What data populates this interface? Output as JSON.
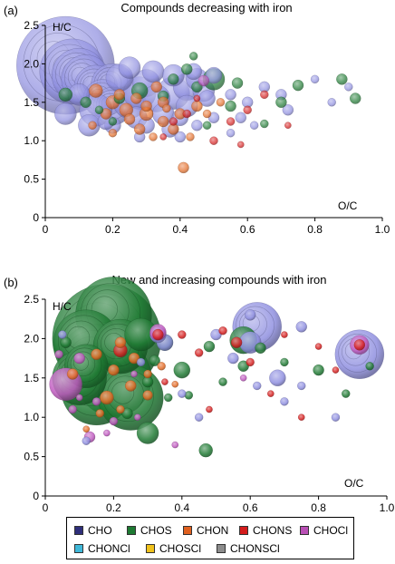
{
  "chart_data": [
    {
      "panel_label": "(a)",
      "type": "scatter",
      "title": "Compounds decreasing with iron",
      "ylabel": "H/C",
      "xlabel": "O/C",
      "xlim": [
        0,
        1.0
      ],
      "ylim": [
        0,
        2.5
      ],
      "x_ticks": [
        "0",
        "0.2",
        "0.4",
        "0.6",
        "0.8",
        "1.0"
      ],
      "y_ticks": [
        "0",
        "0.5",
        "1.0",
        "1.5",
        "2.0",
        "2.5"
      ],
      "grid": false,
      "bubble_series": [
        {
          "class": "CHO",
          "points": [
            [
              0.06,
              1.98,
              18
            ],
            [
              0.08,
              1.9,
              12
            ],
            [
              0.1,
              1.85,
              10
            ],
            [
              0.12,
              1.8,
              9
            ],
            [
              0.15,
              1.7,
              8
            ],
            [
              0.2,
              1.72,
              8
            ],
            [
              0.17,
              1.55,
              7
            ],
            [
              0.2,
              1.45,
              7
            ],
            [
              0.15,
              1.4,
              6
            ],
            [
              0.25,
              1.5,
              6
            ],
            [
              0.28,
              1.62,
              6
            ],
            [
              0.22,
              1.82,
              5
            ],
            [
              0.3,
              1.75,
              5
            ],
            [
              0.33,
              1.55,
              5
            ],
            [
              0.38,
              1.62,
              6
            ],
            [
              0.42,
              1.7,
              5
            ],
            [
              0.45,
              1.8,
              4
            ],
            [
              0.42,
              1.45,
              4
            ],
            [
              0.35,
              1.35,
              4
            ],
            [
              0.27,
              1.3,
              4
            ],
            [
              0.4,
              1.3,
              3
            ],
            [
              0.48,
              1.55,
              3
            ],
            [
              0.5,
              1.85,
              3
            ],
            [
              0.13,
              1.2,
              4
            ],
            [
              0.2,
              1.2,
              3
            ],
            [
              0.3,
              1.2,
              3
            ],
            [
              0.37,
              1.15,
              3
            ],
            [
              0.45,
              1.2,
              2
            ],
            [
              0.55,
              1.6,
              2
            ],
            [
              0.6,
              1.5,
              2
            ],
            [
              0.58,
              1.3,
              2
            ],
            [
              0.65,
              1.7,
              2
            ],
            [
              0.7,
              1.6,
              2
            ],
            [
              0.72,
              1.4,
              2
            ],
            [
              0.8,
              1.8,
              1.5
            ],
            [
              0.85,
              1.5,
              1.5
            ],
            [
              0.9,
              1.7,
              1.5
            ],
            [
              0.25,
              1.95,
              4
            ],
            [
              0.32,
              1.9,
              4
            ],
            [
              0.38,
              1.85,
              4
            ],
            [
              0.1,
              1.6,
              4
            ],
            [
              0.06,
              1.35,
              4
            ],
            [
              0.18,
              1.25,
              3
            ],
            [
              0.5,
              1.3,
              2
            ],
            [
              0.55,
              1.1,
              1.5
            ],
            [
              0.62,
              1.2,
              1.5
            ],
            [
              0.28,
              1.05,
              2
            ],
            [
              0.4,
              1.05,
              2
            ],
            [
              0.47,
              1.65,
              4
            ],
            [
              0.44,
              1.9,
              3
            ]
          ]
        },
        {
          "class": "CHOS",
          "points": [
            [
              0.5,
              1.8,
              4
            ],
            [
              0.28,
              1.65,
              3
            ],
            [
              0.06,
              1.6,
              2.5
            ],
            [
              0.12,
              1.5,
              2
            ],
            [
              0.35,
              1.58,
              2
            ],
            [
              0.45,
              1.7,
              2
            ],
            [
              0.42,
              1.93,
              2
            ],
            [
              0.38,
              1.8,
              2
            ],
            [
              0.22,
              1.55,
              2
            ],
            [
              0.55,
              1.45,
              2
            ],
            [
              0.7,
              1.5,
              2
            ],
            [
              0.75,
              1.72,
              2
            ],
            [
              0.88,
              1.8,
              2
            ],
            [
              0.92,
              1.55,
              2
            ],
            [
              0.2,
              1.25,
              1.5
            ],
            [
              0.16,
              1.4,
              1.5
            ],
            [
              0.48,
              1.2,
              1.5
            ],
            [
              0.57,
              1.75,
              2
            ],
            [
              0.44,
              2.1,
              1.5
            ],
            [
              0.65,
              1.22,
              1.5
            ]
          ]
        },
        {
          "class": "CHON",
          "points": [
            [
              0.15,
              1.65,
              2.5
            ],
            [
              0.2,
              1.5,
              2.5
            ],
            [
              0.24,
              1.4,
              2.5
            ],
            [
              0.3,
              1.35,
              2.5
            ],
            [
              0.35,
              1.25,
              2
            ],
            [
              0.4,
              1.35,
              2
            ],
            [
              0.45,
              1.45,
              2
            ],
            [
              0.3,
              1.45,
              2
            ],
            [
              0.25,
              1.28,
              2
            ],
            [
              0.38,
              1.15,
              2
            ],
            [
              0.41,
              0.65,
              2
            ],
            [
              0.22,
              1.6,
              2
            ],
            [
              0.33,
              1.7,
              2
            ],
            [
              0.18,
              1.35,
              2
            ],
            [
              0.28,
              1.15,
              2
            ],
            [
              0.43,
              1.05,
              1.5
            ],
            [
              0.35,
              1.5,
              2
            ],
            [
              0.27,
              1.55,
              2
            ],
            [
              0.14,
              1.2,
              1.5
            ],
            [
              0.48,
              1.35,
              1.5
            ],
            [
              0.32,
              1.05,
              1.5
            ],
            [
              0.52,
              1.5,
              1.5
            ],
            [
              0.36,
              1.42,
              1.5
            ],
            [
              0.2,
              1.1,
              1.5
            ]
          ]
        },
        {
          "class": "CHONS",
          "points": [
            [
              0.38,
              1.25,
              1.5
            ],
            [
              0.42,
              1.35,
              1.5
            ],
            [
              0.55,
              1.25,
              1.5
            ],
            [
              0.6,
              1.4,
              1.5
            ],
            [
              0.65,
              1.6,
              1.5
            ],
            [
              0.5,
              1.0,
              1.5
            ],
            [
              0.58,
              0.95,
              1.2
            ],
            [
              0.72,
              1.2,
              1.2
            ],
            [
              0.45,
              1.55,
              1.2
            ],
            [
              0.35,
              1.05,
              1.2
            ]
          ]
        },
        {
          "class": "CHOCl",
          "points": [
            [
              0.47,
              1.78,
              2
            ]
          ]
        }
      ]
    },
    {
      "panel_label": "(b)",
      "type": "scatter",
      "title": "New and increasing compounds with iron",
      "ylabel": "H/C",
      "xlabel": "O/C",
      "xlim": [
        0,
        1.0
      ],
      "ylim": [
        0,
        2.5
      ],
      "x_ticks": [
        "0",
        "0.2",
        "0.4",
        "0.6",
        "0.8",
        "1.0"
      ],
      "y_ticks": [
        "0",
        "0.5",
        "1.0",
        "1.5",
        "2.0",
        "2.5"
      ],
      "grid": false,
      "bubble_series": [
        {
          "class": "CHOS",
          "points": [
            [
              0.18,
              2.0,
              20
            ],
            [
              0.2,
              2.3,
              14
            ],
            [
              0.12,
              1.95,
              12
            ],
            [
              0.15,
              1.7,
              14
            ],
            [
              0.2,
              1.5,
              14
            ],
            [
              0.15,
              1.35,
              13
            ],
            [
              0.25,
              1.25,
              12
            ],
            [
              0.1,
              1.5,
              10
            ],
            [
              0.22,
              1.9,
              10
            ],
            [
              0.28,
              2.05,
              6
            ],
            [
              0.12,
              1.65,
              8
            ],
            [
              0.3,
              0.8,
              4
            ],
            [
              0.35,
              1.95,
              3
            ],
            [
              0.4,
              1.6,
              3
            ],
            [
              0.47,
              0.58,
              2.5
            ],
            [
              0.58,
              1.98,
              5
            ],
            [
              0.58,
              1.65,
              2
            ],
            [
              0.63,
              1.88,
              2
            ],
            [
              0.8,
              1.6,
              2
            ],
            [
              0.48,
              1.9,
              2
            ],
            [
              0.52,
              1.45,
              1.5
            ],
            [
              0.36,
              1.25,
              1.5
            ],
            [
              0.32,
              1.72,
              2
            ],
            [
              0.42,
              1.28,
              1.5
            ],
            [
              0.7,
              1.7,
              1.5
            ],
            [
              0.88,
              1.3,
              1.5
            ],
            [
              0.95,
              1.65,
              1.5
            ],
            [
              0.3,
              1.45,
              2
            ],
            [
              0.06,
              1.95,
              2
            ],
            [
              0.24,
              1.05,
              2
            ]
          ]
        },
        {
          "class": "CHO",
          "points": [
            [
              0.62,
              2.15,
              9
            ],
            [
              0.92,
              1.8,
              9
            ],
            [
              0.6,
              1.95,
              4
            ],
            [
              0.68,
              1.5,
              3
            ],
            [
              0.35,
              1.95,
              3
            ],
            [
              0.33,
              2.05,
              3
            ],
            [
              0.6,
              2.3,
              2
            ],
            [
              0.75,
              2.15,
              2
            ],
            [
              0.55,
              1.75,
              2
            ],
            [
              0.5,
              2.05,
              2
            ],
            [
              0.4,
              1.3,
              1.5
            ],
            [
              0.45,
              1.0,
              1.5
            ],
            [
              0.7,
              1.2,
              1.5
            ],
            [
              0.85,
              1.0,
              1.5
            ],
            [
              0.12,
              0.7,
              1.5
            ],
            [
              0.28,
              1.7,
              1.5
            ],
            [
              0.05,
              2.05,
              1.5
            ],
            [
              0.75,
              1.4,
              1.5
            ],
            [
              0.62,
              1.4,
              1.5
            ]
          ]
        },
        {
          "class": "CHON",
          "points": [
            [
              0.08,
              1.55,
              2
            ],
            [
              0.18,
              1.25,
              2.5
            ],
            [
              0.2,
              1.6,
              2
            ],
            [
              0.25,
              1.4,
              2
            ],
            [
              0.22,
              1.95,
              2
            ],
            [
              0.15,
              1.8,
              2
            ],
            [
              0.26,
              1.75,
              2
            ],
            [
              0.3,
              1.55,
              1.5
            ],
            [
              0.34,
              1.65,
              1.5
            ],
            [
              0.3,
              1.28,
              1.8
            ],
            [
              0.16,
              1.05,
              1.5
            ],
            [
              0.22,
              1.1,
              1.5
            ],
            [
              0.38,
              1.42,
              1.2
            ],
            [
              0.12,
              0.85,
              1.2
            ]
          ]
        },
        {
          "class": "CHONS",
          "points": [
            [
              0.22,
              1.85,
              2.5
            ],
            [
              0.33,
              2.05,
              2
            ],
            [
              0.4,
              2.05,
              1.5
            ],
            [
              0.56,
              1.95,
              2
            ],
            [
              0.45,
              1.82,
              1.5
            ],
            [
              0.6,
              1.7,
              1.5
            ],
            [
              0.52,
              2.1,
              1.5
            ],
            [
              0.7,
              2.05,
              1.2
            ],
            [
              0.66,
              1.3,
              1.2
            ],
            [
              0.8,
              1.9,
              1.2
            ],
            [
              0.85,
              1.6,
              1.2
            ],
            [
              0.35,
              1.45,
              1.2
            ],
            [
              0.48,
              1.1,
              1.2
            ],
            [
              0.75,
              1.0,
              1.2
            ],
            [
              0.92,
              1.92,
              2
            ]
          ]
        },
        {
          "class": "CHOCl",
          "points": [
            [
              0.06,
              1.42,
              6
            ],
            [
              0.92,
              1.92,
              3.5
            ],
            [
              0.33,
              2.08,
              3
            ],
            [
              0.1,
              1.75,
              2
            ],
            [
              0.13,
              0.75,
              2
            ],
            [
              0.08,
              1.1,
              1.5
            ],
            [
              0.15,
              1.2,
              1.5
            ],
            [
              0.2,
              0.95,
              1.5
            ],
            [
              0.27,
              1.0,
              1.2
            ],
            [
              0.04,
              1.8,
              1.5
            ],
            [
              0.1,
              1.25,
              1.2
            ],
            [
              0.26,
              1.55,
              1.2
            ],
            [
              0.18,
              0.8,
              1.2
            ],
            [
              0.38,
              0.65,
              1.2
            ],
            [
              0.58,
              1.5,
              1.2
            ]
          ]
        }
      ]
    }
  ],
  "legend": {
    "items": [
      {
        "label": "CHO",
        "color": "#2e2e7a"
      },
      {
        "label": "CHOS",
        "color": "#1e7a32"
      },
      {
        "label": "CHON",
        "color": "#e0601f"
      },
      {
        "label": "CHONS",
        "color": "#d41c1c"
      },
      {
        "label": "CHOCl",
        "color": "#b94fb5"
      },
      {
        "label": "CHONCl",
        "color": "#3fb8d9"
      },
      {
        "label": "CHOSCl",
        "color": "#f0c21b"
      },
      {
        "label": "CHONSCl",
        "color": "#8c8c8c"
      }
    ]
  },
  "bubble_colors": {
    "CHO": "#8f8fe0",
    "CHOS": "#1f7a33",
    "CHON": "#e36a24",
    "CHONS": "#d61f1f",
    "CHOCl": "#c05ac0",
    "CHONCl": "#3fb8d9",
    "CHOSCl": "#f0c21b",
    "CHONSCl": "#8c8c8c"
  }
}
